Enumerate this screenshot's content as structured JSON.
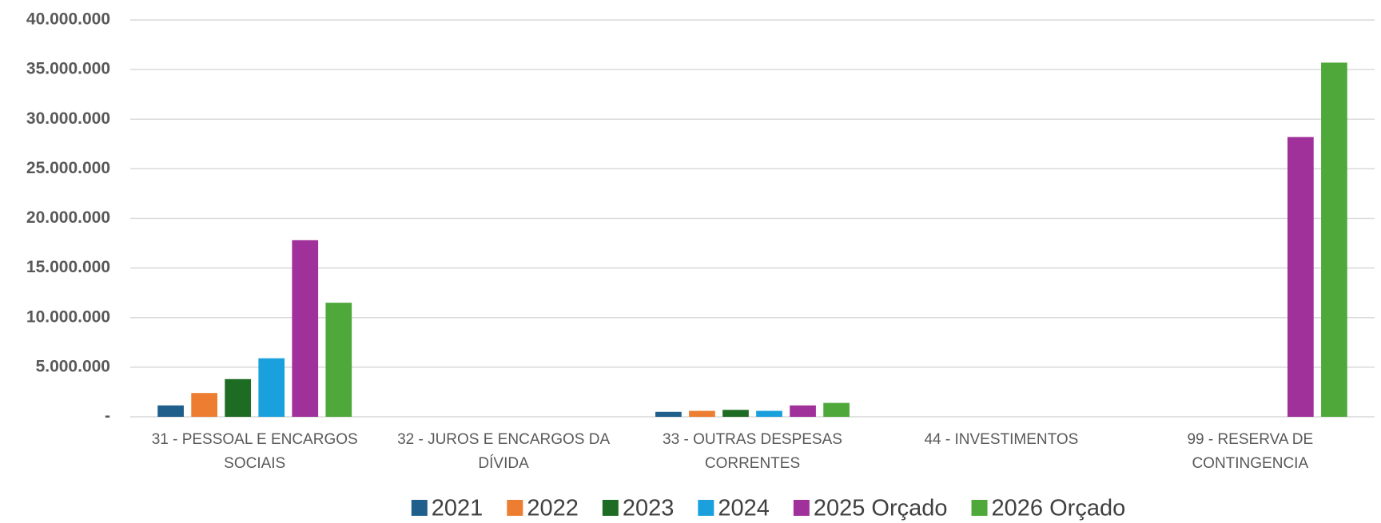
{
  "chart_data": {
    "type": "bar",
    "categories": [
      "31 - PESSOAL E ENCARGOS SOCIAIS",
      "32 - JUROS E ENCARGOS DA DÍVIDA",
      "33 - OUTRAS DESPESAS CORRENTES",
      "44 - INVESTIMENTOS",
      "99 -  RESERVA DE CONTINGENCIA"
    ],
    "series": [
      {
        "name": "2021",
        "color": "#1f5f8b",
        "values": [
          1150000,
          0,
          500000,
          0,
          0
        ]
      },
      {
        "name": "2022",
        "color": "#ed7d31",
        "values": [
          2400000,
          0,
          600000,
          0,
          0
        ]
      },
      {
        "name": "2023",
        "color": "#1e6b24",
        "values": [
          3800000,
          0,
          700000,
          0,
          0
        ]
      },
      {
        "name": "2024",
        "color": "#1aa0dc",
        "values": [
          5900000,
          0,
          600000,
          0,
          0
        ]
      },
      {
        "name": "2025 Orçado",
        "color": "#a0309a",
        "values": [
          17800000,
          0,
          1150000,
          0,
          28200000
        ]
      },
      {
        "name": "2026 Orçado",
        "color": "#4fa83a",
        "values": [
          11500000,
          0,
          1400000,
          0,
          35700000
        ]
      }
    ],
    "ylim": [
      0,
      40000000
    ],
    "yticks": [
      {
        "value": 0,
        "label": "-"
      },
      {
        "value": 5000000,
        "label": "5.000.000"
      },
      {
        "value": 10000000,
        "label": "10.000.000"
      },
      {
        "value": 15000000,
        "label": "15.000.000"
      },
      {
        "value": 20000000,
        "label": "20.000.000"
      },
      {
        "value": 25000000,
        "label": "25.000.000"
      },
      {
        "value": 30000000,
        "label": "30.000.000"
      },
      {
        "value": 35000000,
        "label": "35.000.000"
      },
      {
        "value": 40000000,
        "label": "40.000.000"
      }
    ],
    "grid": true,
    "legend": "bottom"
  }
}
